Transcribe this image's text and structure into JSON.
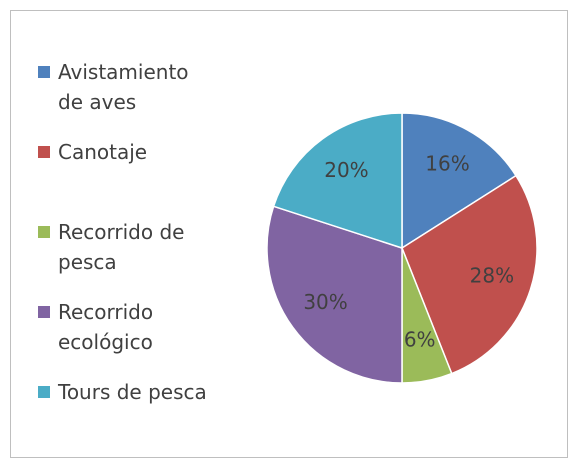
{
  "chart_data": {
    "type": "pie",
    "categories": [
      "Avistamiento de aves",
      "Canotaje",
      "Recorrido de pesca",
      "Recorrido ecológico",
      "Tours de pesca"
    ],
    "values": [
      16,
      28,
      6,
      30,
      20
    ],
    "value_labels": [
      "16%",
      "28%",
      "6%",
      "30%",
      "20%"
    ],
    "colors": [
      "#4f81bd",
      "#c0504d",
      "#9bbb59",
      "#8064a2",
      "#4bacc6"
    ],
    "legend": "left"
  }
}
